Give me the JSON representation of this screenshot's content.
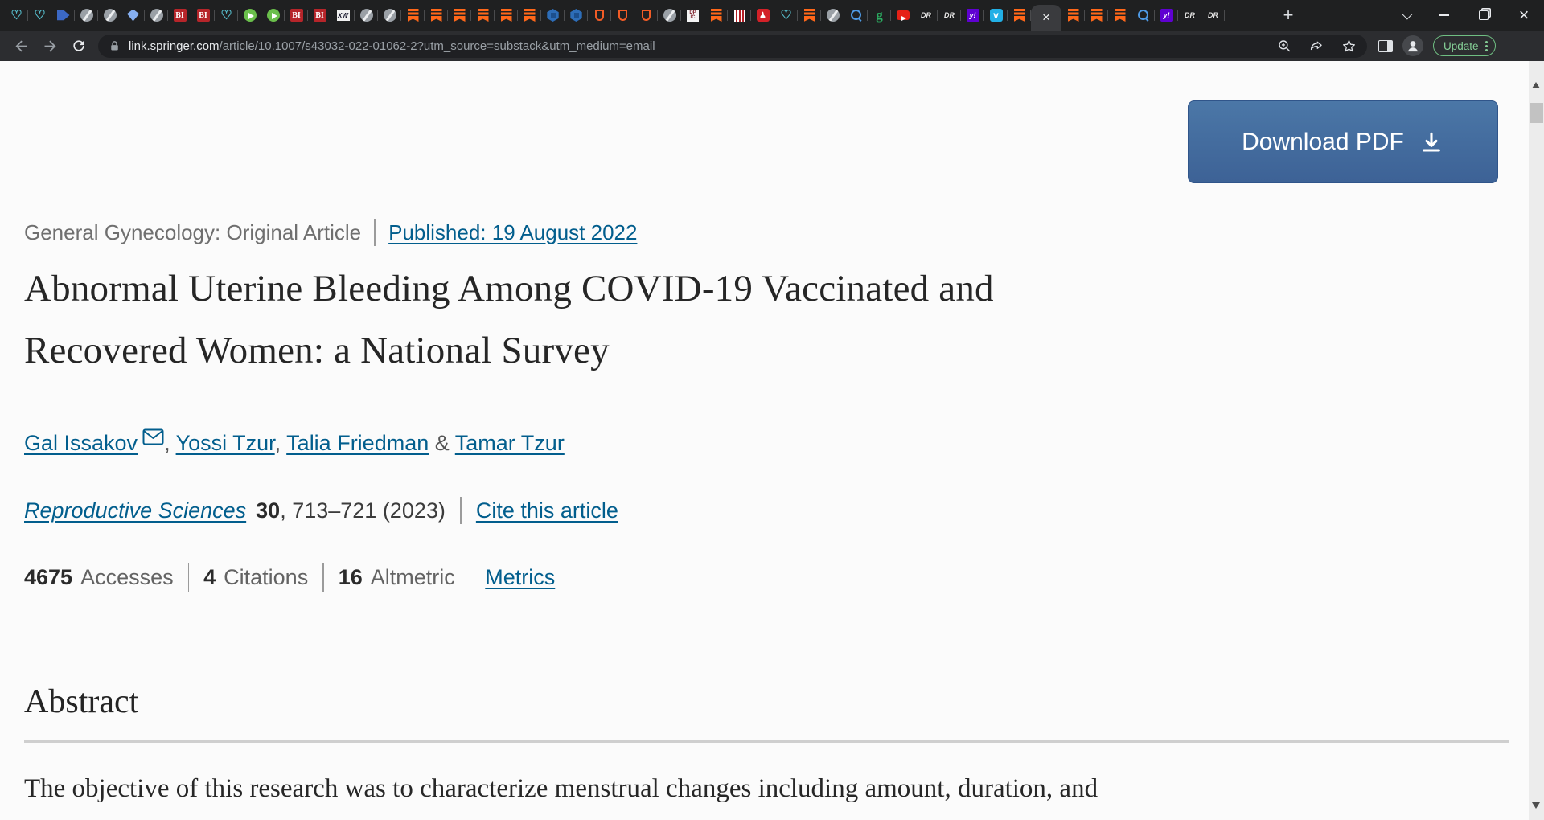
{
  "browser": {
    "tabs": [
      {
        "name": "vitals"
      },
      {
        "name": "vitals"
      },
      {
        "name": "flagblue"
      },
      {
        "name": "globe"
      },
      {
        "name": "globe"
      },
      {
        "name": "gem"
      },
      {
        "name": "globe"
      },
      {
        "name": "bi"
      },
      {
        "name": "bi"
      },
      {
        "name": "vitals"
      },
      {
        "name": "play"
      },
      {
        "name": "play"
      },
      {
        "name": "bi"
      },
      {
        "name": "bi"
      },
      {
        "name": "xw"
      },
      {
        "name": "globe"
      },
      {
        "name": "globe"
      },
      {
        "name": "substack"
      },
      {
        "name": "substack"
      },
      {
        "name": "substack"
      },
      {
        "name": "substack"
      },
      {
        "name": "substack"
      },
      {
        "name": "substack"
      },
      {
        "name": "cube"
      },
      {
        "name": "cube"
      },
      {
        "name": "shield"
      },
      {
        "name": "shield"
      },
      {
        "name": "shield"
      },
      {
        "name": "globe"
      },
      {
        "name": "dpic"
      },
      {
        "name": "substack"
      },
      {
        "name": "stripes"
      },
      {
        "name": "pawnred"
      },
      {
        "name": "vitals"
      },
      {
        "name": "substack"
      },
      {
        "name": "globe"
      },
      {
        "name": "search"
      },
      {
        "name": "gr"
      },
      {
        "name": "yt"
      },
      {
        "name": "dr"
      },
      {
        "name": "dr"
      },
      {
        "name": "yahoo"
      },
      {
        "name": "vimeo"
      },
      {
        "name": "substack"
      },
      {
        "name": "close",
        "active": true
      },
      {
        "name": "substack"
      },
      {
        "name": "substack"
      },
      {
        "name": "substack"
      },
      {
        "name": "search"
      },
      {
        "name": "yahoo"
      },
      {
        "name": "dr"
      },
      {
        "name": "dr"
      }
    ],
    "toolbar": {
      "url_domain": "link.springer.com",
      "url_path": "/article/10.1007/s43032-022-01062-2?utm_source=substack&utm_medium=email",
      "update_label": "Update"
    }
  },
  "article": {
    "download_button": "Download PDF",
    "eyebrow": {
      "category": "General Gynecology: Original Article",
      "published": "Published: 19 August 2022"
    },
    "title_line1": "Abnormal Uterine Bleeding Among COVID-19 Vaccinated and",
    "title_line2": "Recovered Women: a National Survey",
    "authors": [
      {
        "name": "Gal Issakov",
        "email_icon": true,
        "sep": ", "
      },
      {
        "name": "Yossi Tzur",
        "sep": ", "
      },
      {
        "name": "Talia Friedman",
        "sep": " & "
      },
      {
        "name": "Tamar Tzur",
        "sep": ""
      }
    ],
    "journal": {
      "name": "Reproductive Sciences",
      "volume": "30",
      "pages": ", 713–721 (2023)",
      "cite_link": "Cite this article"
    },
    "metrics": [
      {
        "value": "4675",
        "label": "Accesses"
      },
      {
        "value": "4",
        "label": "Citations"
      },
      {
        "value": "16",
        "label": "Altmetric"
      }
    ],
    "metrics_link": "Metrics",
    "abstract_heading": "Abstract",
    "abstract_text": "The objective of this research was to characterize menstrual changes including amount, duration, and"
  },
  "colors": {
    "springer_link_blue": "#025e8d",
    "download_button_blue": "#3f6597",
    "substack_orange": "#ff6719"
  }
}
